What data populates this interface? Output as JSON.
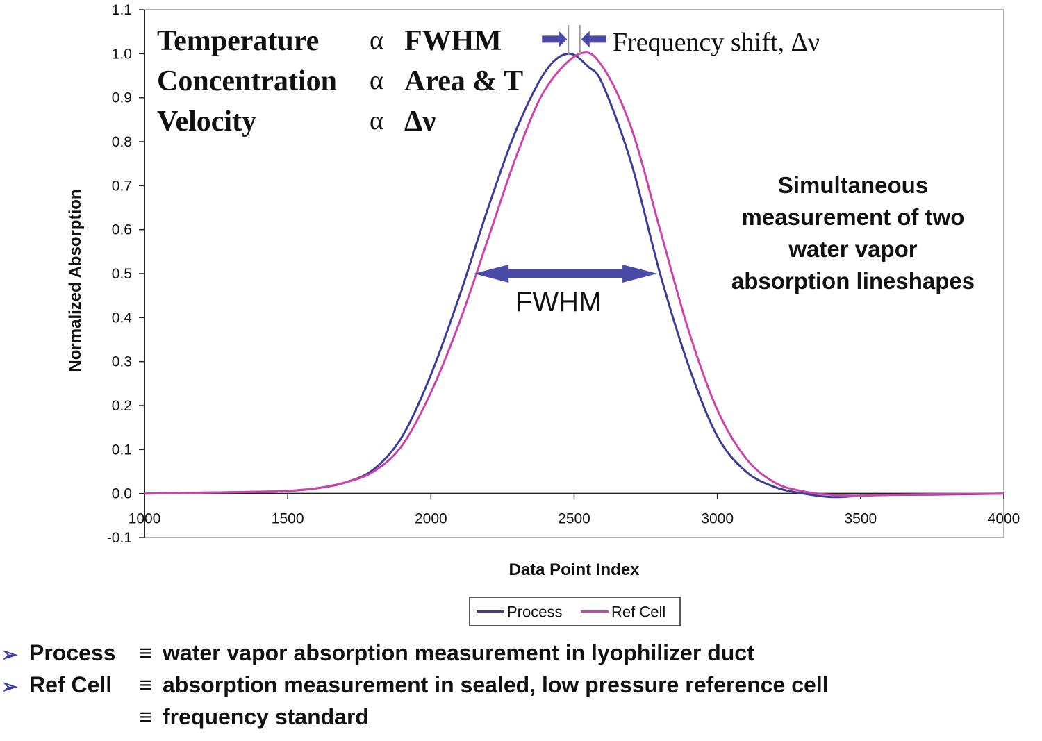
{
  "chart_data": {
    "type": "line",
    "title": "",
    "xlabel": "Data Point Index",
    "ylabel": "Normalized Absorption",
    "xlim": [
      1000,
      4000
    ],
    "ylim": [
      -0.1,
      1.1
    ],
    "x_ticks": [
      "1000",
      "1500",
      "2000",
      "2500",
      "3000",
      "3500",
      "4000"
    ],
    "y_ticks": [
      "-0.1",
      "0.0",
      "0.1",
      "0.2",
      "0.3",
      "0.4",
      "0.5",
      "0.6",
      "0.7",
      "0.8",
      "0.9",
      "1.0",
      "1.1"
    ],
    "grid": false,
    "legend_position": "bottom",
    "series": [
      {
        "name": "Process",
        "color": "#3b3b98",
        "x": [
          1000,
          1200,
          1400,
          1500,
          1600,
          1700,
          1800,
          1900,
          2000,
          2100,
          2200,
          2300,
          2400,
          2480,
          2550,
          2600,
          2700,
          2800,
          2900,
          3000,
          3100,
          3200,
          3300,
          3400,
          3500,
          3600,
          3800,
          4000
        ],
        "y": [
          0.0,
          0.002,
          0.004,
          0.006,
          0.012,
          0.025,
          0.055,
          0.13,
          0.27,
          0.45,
          0.65,
          0.83,
          0.96,
          1.0,
          0.97,
          0.93,
          0.75,
          0.5,
          0.29,
          0.13,
          0.05,
          0.015,
          0.0,
          -0.008,
          -0.005,
          -0.003,
          -0.002,
          0.0
        ]
      },
      {
        "name": "Ref Cell",
        "color": "#cc44aa",
        "x": [
          1000,
          1200,
          1400,
          1500,
          1600,
          1700,
          1800,
          1900,
          2000,
          2100,
          2200,
          2300,
          2400,
          2520,
          2600,
          2700,
          2800,
          2900,
          3000,
          3100,
          3200,
          3300,
          3400,
          3500,
          3600,
          3800,
          4000
        ],
        "y": [
          0.0,
          0.002,
          0.004,
          0.006,
          0.012,
          0.025,
          0.05,
          0.11,
          0.23,
          0.39,
          0.58,
          0.77,
          0.92,
          1.0,
          0.97,
          0.83,
          0.6,
          0.37,
          0.19,
          0.08,
          0.025,
          0.005,
          -0.003,
          -0.005,
          -0.003,
          -0.001,
          0.0
        ]
      }
    ],
    "annotations": {
      "relations": [
        {
          "quantity": "Temperature",
          "symbol": "α",
          "indicator": "FWHM"
        },
        {
          "quantity": "Concentration",
          "symbol": "α",
          "indicator": "Area & T"
        },
        {
          "quantity": "Velocity",
          "symbol": "α",
          "indicator": "Δν"
        }
      ],
      "shift_label": "Frequency shift, Δν",
      "fwhm_label": "FWHM",
      "fwhm_arrow": {
        "x_start": 2150,
        "x_end": 2790,
        "y": 0.5
      },
      "shift_markers": {
        "x_left": 2480,
        "x_right": 2520,
        "y": 1.03
      },
      "arrow_color": "#4a4aa8",
      "side_note": [
        "Simultaneous",
        "measurement of two",
        "water vapor",
        "absorption lineshapes"
      ]
    }
  },
  "footer": {
    "bullets": [
      {
        "term": "Process",
        "equiv": "≡",
        "text": "water vapor absorption measurement in lyophilizer duct"
      },
      {
        "term": "Ref Cell",
        "equiv": "≡",
        "text": "absorption measurement in sealed, low pressure reference cell"
      },
      {
        "term": "",
        "equiv": "≡",
        "text": "frequency standard"
      }
    ],
    "bullet_marker": "➢"
  }
}
